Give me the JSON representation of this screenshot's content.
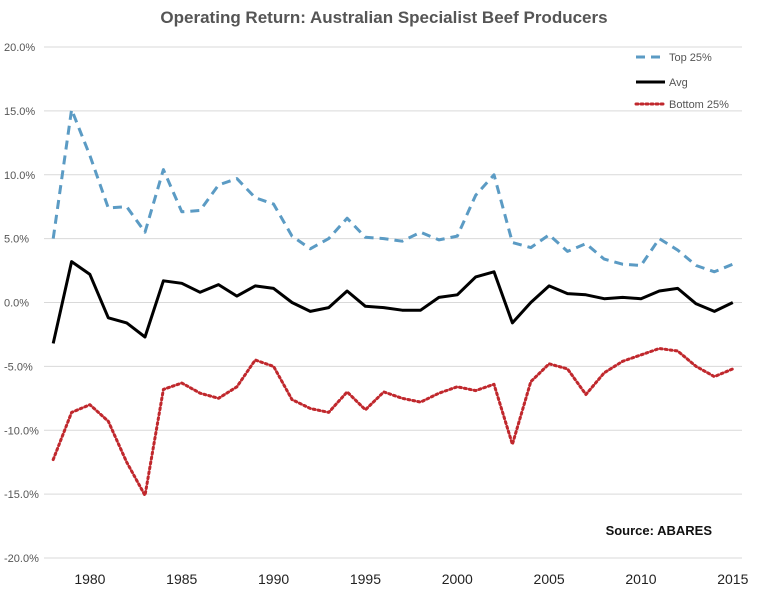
{
  "chart_data": {
    "type": "line",
    "title": "Operating Return: Australian Specialist Beef Producers",
    "xlabel": "",
    "ylabel": "",
    "x": [
      1978,
      1979,
      1980,
      1981,
      1982,
      1983,
      1984,
      1985,
      1986,
      1987,
      1988,
      1989,
      1990,
      1991,
      1992,
      1993,
      1994,
      1995,
      1996,
      1997,
      1998,
      1999,
      2000,
      2001,
      2002,
      2003,
      2004,
      2005,
      2006,
      2007,
      2008,
      2009,
      2010,
      2011,
      2012,
      2013,
      2014,
      2015
    ],
    "x_ticks": [
      1980,
      1985,
      1990,
      1995,
      2000,
      2005,
      2010,
      2015
    ],
    "x_tick_labels": [
      "1980",
      "1985",
      "1990",
      "1995",
      "2000",
      "2005",
      "2010",
      "2015"
    ],
    "xlim": [
      1977.5,
      2015.5
    ],
    "ylim": [
      -20,
      20
    ],
    "y_ticks": [
      20,
      15,
      10,
      5,
      0,
      -5,
      -10,
      -15,
      -20
    ],
    "y_tick_labels": [
      "20.0%",
      "15.0%",
      "10.0%",
      "5.0%",
      "0.0%",
      "-5.0%",
      "-10.0%",
      "-15.0%",
      "-20.0%"
    ],
    "grid": true,
    "legend_position": "top-right",
    "series": [
      {
        "name": "Top 25%",
        "color": "#5b9bc4",
        "style": "dashed",
        "values": [
          5.0,
          15.1,
          11.5,
          7.4,
          7.5,
          5.5,
          10.4,
          7.1,
          7.2,
          9.2,
          9.7,
          8.2,
          7.7,
          5.2,
          4.2,
          5.0,
          6.6,
          5.1,
          5.0,
          4.8,
          5.5,
          4.9,
          5.2,
          8.4,
          10.0,
          4.7,
          4.3,
          5.3,
          4.0,
          4.6,
          3.4,
          3.0,
          2.9,
          5.0,
          4.1,
          2.9,
          2.4,
          3.0
        ]
      },
      {
        "name": "Avg",
        "color": "#000000",
        "style": "solid",
        "values": [
          -3.2,
          3.2,
          2.2,
          -1.2,
          -1.6,
          -2.7,
          1.7,
          1.5,
          0.8,
          1.4,
          0.5,
          1.3,
          1.1,
          0.0,
          -0.7,
          -0.4,
          0.9,
          -0.3,
          -0.4,
          -0.6,
          -0.6,
          0.4,
          0.6,
          2.0,
          2.4,
          -1.6,
          0.0,
          1.3,
          0.7,
          0.6,
          0.3,
          0.4,
          0.3,
          0.9,
          1.1,
          -0.1,
          -0.7,
          0.0
        ]
      },
      {
        "name": "Bottom 25%",
        "color": "#c0282d",
        "style": "dotted",
        "values": [
          -12.3,
          -8.6,
          -8.0,
          -9.3,
          -12.5,
          -15.1,
          -6.8,
          -6.3,
          -7.1,
          -7.5,
          -6.6,
          -4.5,
          -5.0,
          -7.6,
          -8.3,
          -8.6,
          -7.0,
          -8.4,
          -7.0,
          -7.5,
          -7.8,
          -7.1,
          -6.6,
          -6.9,
          -6.4,
          -11.1,
          -6.2,
          -4.8,
          -5.2,
          -7.2,
          -5.5,
          -4.6,
          -4.1,
          -3.6,
          -3.8,
          -5.0,
          -5.8,
          -5.2
        ]
      }
    ],
    "annotation": "Source: ABARES"
  }
}
